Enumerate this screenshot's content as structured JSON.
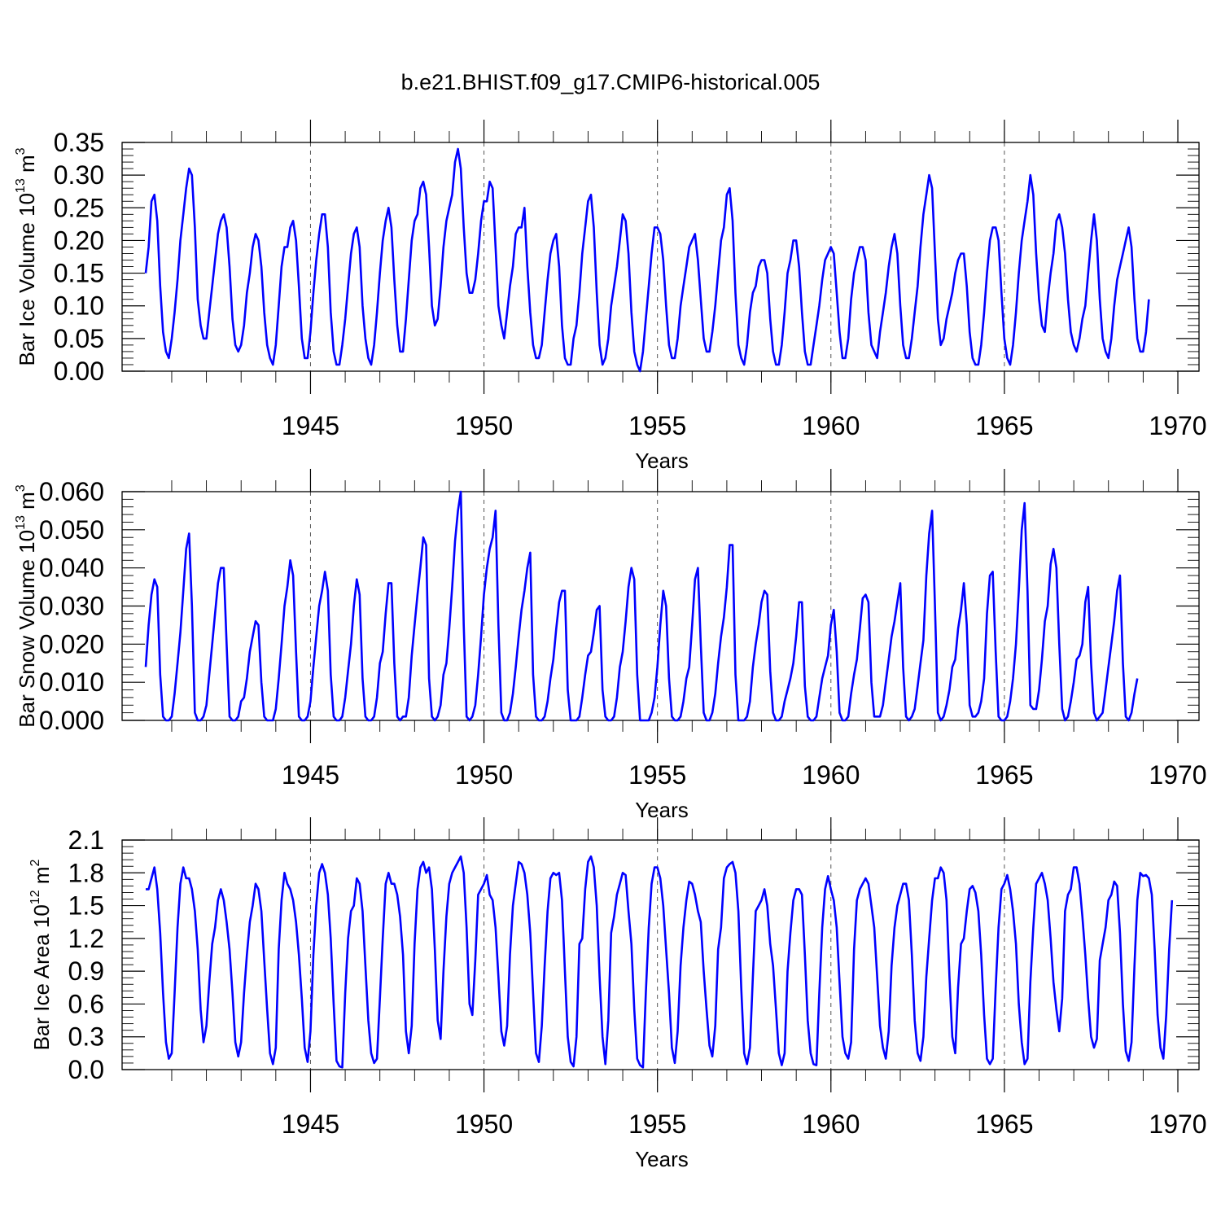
{
  "title": "b.e21.BHIST.f09_g17.CMIP6-historical.005",
  "colors": {
    "series": "#0000ff",
    "frame": "#000000",
    "gridline": "#555555"
  },
  "chart_data": [
    {
      "type": "line",
      "ylabel": {
        "text": "Bar Ice Volume 10",
        "sup": "13",
        "unit": " m",
        "unit_sup": "3"
      },
      "xlabel": "Years",
      "xlim": [
        1940.25,
        1970
      ],
      "ylim": [
        0,
        0.35
      ],
      "xticks": [
        1945,
        1950,
        1955,
        1960,
        1965,
        1970
      ],
      "xtick_labels": [
        "1945",
        "1950",
        "1955",
        "1960",
        "1965",
        "1970"
      ],
      "yticks": [
        0,
        0.05,
        0.1,
        0.15,
        0.2,
        0.25,
        0.3,
        0.35
      ],
      "ytick_labels": [
        "0.00",
        "0.05",
        "0.10",
        "0.15",
        "0.20",
        "0.25",
        "0.30",
        "0.35"
      ],
      "vlines": [
        1945,
        1950,
        1955,
        1960,
        1965
      ],
      "x_start": 1940.25,
      "x_step": 0.08333,
      "values": [
        0.15,
        0.19,
        0.26,
        0.27,
        0.23,
        0.13,
        0.06,
        0.03,
        0.02,
        0.05,
        0.09,
        0.14,
        0.2,
        0.24,
        0.28,
        0.31,
        0.3,
        0.22,
        0.11,
        0.07,
        0.05,
        0.05,
        0.09,
        0.13,
        0.17,
        0.21,
        0.23,
        0.24,
        0.22,
        0.16,
        0.08,
        0.04,
        0.03,
        0.04,
        0.07,
        0.12,
        0.15,
        0.19,
        0.21,
        0.2,
        0.16,
        0.09,
        0.04,
        0.02,
        0.01,
        0.04,
        0.1,
        0.16,
        0.19,
        0.19,
        0.22,
        0.23,
        0.2,
        0.13,
        0.05,
        0.02,
        0.02,
        0.06,
        0.12,
        0.17,
        0.21,
        0.24,
        0.24,
        0.19,
        0.09,
        0.03,
        0.01,
        0.01,
        0.04,
        0.08,
        0.13,
        0.18,
        0.21,
        0.22,
        0.19,
        0.1,
        0.05,
        0.02,
        0.01,
        0.04,
        0.09,
        0.15,
        0.2,
        0.23,
        0.25,
        0.22,
        0.14,
        0.07,
        0.03,
        0.03,
        0.08,
        0.14,
        0.2,
        0.23,
        0.24,
        0.28,
        0.29,
        0.27,
        0.19,
        0.1,
        0.07,
        0.08,
        0.13,
        0.19,
        0.23,
        0.25,
        0.27,
        0.32,
        0.34,
        0.31,
        0.22,
        0.15,
        0.12,
        0.12,
        0.14,
        0.18,
        0.23,
        0.26,
        0.26,
        0.29,
        0.28,
        0.19,
        0.1,
        0.07,
        0.05,
        0.09,
        0.13,
        0.16,
        0.21,
        0.22,
        0.22,
        0.25,
        0.16,
        0.09,
        0.04,
        0.02,
        0.02,
        0.04,
        0.09,
        0.14,
        0.18,
        0.2,
        0.21,
        0.16,
        0.07,
        0.02,
        0.01,
        0.01,
        0.05,
        0.07,
        0.12,
        0.18,
        0.22,
        0.26,
        0.27,
        0.22,
        0.12,
        0.04,
        0.01,
        0.02,
        0.05,
        0.1,
        0.13,
        0.16,
        0.2,
        0.24,
        0.23,
        0.18,
        0.09,
        0.03,
        0.01,
        0.0,
        0.03,
        0.08,
        0.13,
        0.18,
        0.22,
        0.22,
        0.21,
        0.17,
        0.1,
        0.04,
        0.02,
        0.02,
        0.05,
        0.1,
        0.13,
        0.16,
        0.19,
        0.2,
        0.21,
        0.17,
        0.11,
        0.05,
        0.03,
        0.03,
        0.06,
        0.1,
        0.15,
        0.2,
        0.22,
        0.27,
        0.28,
        0.23,
        0.12,
        0.04,
        0.02,
        0.01,
        0.04,
        0.09,
        0.12,
        0.13,
        0.16,
        0.17,
        0.17,
        0.15,
        0.08,
        0.03,
        0.01,
        0.01,
        0.04,
        0.09,
        0.15,
        0.17,
        0.2,
        0.2,
        0.16,
        0.09,
        0.03,
        0.01,
        0.01,
        0.04,
        0.07,
        0.1,
        0.14,
        0.17,
        0.18,
        0.19,
        0.18,
        0.12,
        0.06,
        0.02,
        0.02,
        0.05,
        0.11,
        0.15,
        0.17,
        0.19,
        0.19,
        0.17,
        0.09,
        0.04,
        0.03,
        0.02,
        0.06,
        0.09,
        0.12,
        0.16,
        0.19,
        0.21,
        0.18,
        0.1,
        0.04,
        0.02,
        0.02,
        0.05,
        0.09,
        0.13,
        0.19,
        0.24,
        0.27,
        0.3,
        0.28,
        0.18,
        0.08,
        0.04,
        0.05,
        0.08,
        0.1,
        0.12,
        0.15,
        0.17,
        0.18,
        0.18,
        0.13,
        0.06,
        0.02,
        0.01,
        0.01,
        0.04,
        0.09,
        0.15,
        0.2,
        0.22,
        0.22,
        0.2,
        0.12,
        0.05,
        0.02,
        0.01,
        0.04,
        0.09,
        0.15,
        0.2,
        0.23,
        0.26,
        0.3,
        0.27,
        0.18,
        0.11,
        0.07,
        0.06,
        0.11,
        0.15,
        0.18,
        0.23,
        0.24,
        0.22,
        0.18,
        0.11,
        0.06,
        0.04,
        0.03,
        0.05,
        0.08,
        0.1,
        0.15,
        0.2,
        0.24,
        0.2,
        0.11,
        0.05,
        0.03,
        0.02,
        0.05,
        0.1,
        0.14,
        0.16,
        0.18,
        0.2,
        0.22,
        0.19,
        0.11,
        0.05,
        0.03,
        0.03,
        0.06,
        0.11
      ]
    },
    {
      "type": "line",
      "ylabel": {
        "text": "Bar Snow Volume 10",
        "sup": "13",
        "unit": " m",
        "unit_sup": "3"
      },
      "xlabel": "Years",
      "xlim": [
        1940.25,
        1970
      ],
      "ylim": [
        0,
        0.06
      ],
      "xticks": [
        1945,
        1950,
        1955,
        1960,
        1965,
        1970
      ],
      "xtick_labels": [
        "1945",
        "1950",
        "1955",
        "1960",
        "1965",
        "1970"
      ],
      "yticks": [
        0,
        0.01,
        0.02,
        0.03,
        0.04,
        0.05,
        0.06
      ],
      "ytick_labels": [
        "0.000",
        "0.010",
        "0.020",
        "0.030",
        "0.040",
        "0.050",
        "0.060"
      ],
      "vlines": [
        1945,
        1950,
        1955,
        1960,
        1965
      ],
      "x_start": 1940.25,
      "x_step": 0.08333,
      "values": [
        0.014,
        0.025,
        0.033,
        0.037,
        0.035,
        0.012,
        0.001,
        0.0,
        0.0,
        0.001,
        0.007,
        0.015,
        0.023,
        0.034,
        0.045,
        0.049,
        0.03,
        0.002,
        0.0,
        0.0,
        0.001,
        0.004,
        0.012,
        0.02,
        0.028,
        0.036,
        0.04,
        0.04,
        0.02,
        0.001,
        0.0,
        0.0,
        0.001,
        0.005,
        0.006,
        0.011,
        0.018,
        0.022,
        0.026,
        0.025,
        0.01,
        0.001,
        0.0,
        0.0,
        0.0,
        0.003,
        0.011,
        0.02,
        0.03,
        0.035,
        0.042,
        0.038,
        0.018,
        0.001,
        0.0,
        0.0,
        0.001,
        0.005,
        0.014,
        0.022,
        0.03,
        0.034,
        0.039,
        0.034,
        0.012,
        0.001,
        0.0,
        0.0,
        0.001,
        0.006,
        0.013,
        0.02,
        0.03,
        0.037,
        0.033,
        0.011,
        0.001,
        0.0,
        0.0,
        0.001,
        0.006,
        0.015,
        0.018,
        0.028,
        0.036,
        0.036,
        0.015,
        0.001,
        0.0,
        0.001,
        0.001,
        0.006,
        0.017,
        0.025,
        0.033,
        0.04,
        0.048,
        0.046,
        0.011,
        0.001,
        0.0,
        0.001,
        0.004,
        0.012,
        0.015,
        0.024,
        0.035,
        0.047,
        0.055,
        0.06,
        0.025,
        0.001,
        0.0,
        0.001,
        0.004,
        0.012,
        0.022,
        0.033,
        0.04,
        0.045,
        0.048,
        0.055,
        0.025,
        0.002,
        0.0,
        0.0,
        0.002,
        0.007,
        0.014,
        0.022,
        0.029,
        0.034,
        0.04,
        0.044,
        0.012,
        0.001,
        0.0,
        0.0,
        0.001,
        0.005,
        0.011,
        0.016,
        0.024,
        0.031,
        0.034,
        0.034,
        0.008,
        0.0,
        0.0,
        0.0,
        0.001,
        0.006,
        0.012,
        0.017,
        0.018,
        0.023,
        0.029,
        0.03,
        0.008,
        0.001,
        0.0,
        0.0,
        0.001,
        0.006,
        0.014,
        0.018,
        0.026,
        0.035,
        0.04,
        0.037,
        0.012,
        0.0,
        0.0,
        0.0,
        0.0,
        0.002,
        0.006,
        0.014,
        0.025,
        0.034,
        0.03,
        0.011,
        0.001,
        0.0,
        0.0,
        0.001,
        0.005,
        0.011,
        0.014,
        0.025,
        0.037,
        0.04,
        0.02,
        0.002,
        0.0,
        0.0,
        0.002,
        0.007,
        0.015,
        0.022,
        0.027,
        0.035,
        0.046,
        0.046,
        0.012,
        0.0,
        0.0,
        0.0,
        0.001,
        0.005,
        0.014,
        0.02,
        0.025,
        0.031,
        0.034,
        0.033,
        0.013,
        0.002,
        0.0,
        0.0,
        0.001,
        0.005,
        0.008,
        0.011,
        0.015,
        0.022,
        0.031,
        0.031,
        0.009,
        0.001,
        0.0,
        0.0,
        0.001,
        0.006,
        0.011,
        0.014,
        0.017,
        0.025,
        0.029,
        0.018,
        0.002,
        0.0,
        0.0,
        0.001,
        0.007,
        0.012,
        0.016,
        0.024,
        0.032,
        0.033,
        0.031,
        0.01,
        0.001,
        0.001,
        0.001,
        0.004,
        0.01,
        0.016,
        0.022,
        0.026,
        0.031,
        0.036,
        0.014,
        0.001,
        0.0,
        0.001,
        0.003,
        0.009,
        0.015,
        0.021,
        0.038,
        0.049,
        0.055,
        0.03,
        0.002,
        0.0,
        0.001,
        0.004,
        0.008,
        0.014,
        0.016,
        0.024,
        0.029,
        0.036,
        0.025,
        0.004,
        0.001,
        0.001,
        0.002,
        0.005,
        0.011,
        0.028,
        0.038,
        0.039,
        0.018,
        0.001,
        0.0,
        0.0,
        0.001,
        0.005,
        0.011,
        0.02,
        0.034,
        0.05,
        0.057,
        0.034,
        0.004,
        0.003,
        0.003,
        0.008,
        0.016,
        0.026,
        0.03,
        0.041,
        0.045,
        0.04,
        0.02,
        0.003,
        0.0,
        0.001,
        0.005,
        0.01,
        0.016,
        0.017,
        0.02,
        0.031,
        0.035,
        0.015,
        0.002,
        0.0,
        0.001,
        0.002,
        0.008,
        0.014,
        0.02,
        0.026,
        0.034,
        0.038,
        0.015,
        0.001,
        0.0,
        0.002,
        0.007,
        0.011
      ]
    },
    {
      "type": "line",
      "ylabel": {
        "text": "Bar Ice Area 10",
        "sup": "12",
        "unit": " m",
        "unit_sup": "2"
      },
      "xlabel": "Years",
      "xlim": [
        1940.25,
        1970
      ],
      "ylim": [
        0,
        2.1
      ],
      "xticks": [
        1945,
        1950,
        1955,
        1960,
        1965,
        1970
      ],
      "xtick_labels": [
        "1945",
        "1950",
        "1955",
        "1960",
        "1965",
        "1970"
      ],
      "yticks": [
        0,
        0.3,
        0.6,
        0.9,
        1.2,
        1.5,
        1.8,
        2.1
      ],
      "ytick_labels": [
        "0.0",
        "0.3",
        "0.6",
        "0.9",
        "1.2",
        "1.5",
        "1.8",
        "2.1"
      ],
      "vlines": [
        1945,
        1950,
        1955,
        1960,
        1965
      ],
      "x_start": 1940.25,
      "x_step": 0.08333,
      "values": [
        1.65,
        1.65,
        1.75,
        1.85,
        1.65,
        1.25,
        0.7,
        0.25,
        0.1,
        0.15,
        0.7,
        1.3,
        1.7,
        1.85,
        1.75,
        1.75,
        1.65,
        1.45,
        1.1,
        0.55,
        0.25,
        0.4,
        0.8,
        1.15,
        1.3,
        1.55,
        1.65,
        1.55,
        1.35,
        1.1,
        0.7,
        0.25,
        0.12,
        0.25,
        0.7,
        1.05,
        1.35,
        1.5,
        1.7,
        1.65,
        1.45,
        1.0,
        0.55,
        0.15,
        0.05,
        0.2,
        1.1,
        1.55,
        1.8,
        1.7,
        1.65,
        1.55,
        1.35,
        1.05,
        0.65,
        0.2,
        0.07,
        0.35,
        1.05,
        1.5,
        1.8,
        1.88,
        1.8,
        1.6,
        1.2,
        0.6,
        0.08,
        0.03,
        0.02,
        0.7,
        1.2,
        1.45,
        1.5,
        1.75,
        1.7,
        1.45,
        0.95,
        0.45,
        0.15,
        0.06,
        0.1,
        0.65,
        1.2,
        1.7,
        1.8,
        1.7,
        1.7,
        1.6,
        1.4,
        1.05,
        0.35,
        0.15,
        0.4,
        1.15,
        1.65,
        1.85,
        1.9,
        1.8,
        1.85,
        1.65,
        1.1,
        0.45,
        0.28,
        0.9,
        1.4,
        1.7,
        1.8,
        1.85,
        1.9,
        1.95,
        1.8,
        1.3,
        0.6,
        0.5,
        1.0,
        1.6,
        1.65,
        1.7,
        1.78,
        1.6,
        1.55,
        1.3,
        0.85,
        0.35,
        0.22,
        0.4,
        1.05,
        1.5,
        1.7,
        1.9,
        1.88,
        1.8,
        1.6,
        1.25,
        0.7,
        0.15,
        0.07,
        0.4,
        0.95,
        1.45,
        1.75,
        1.8,
        1.78,
        1.8,
        1.55,
        0.9,
        0.3,
        0.07,
        0.03,
        0.3,
        1.15,
        1.2,
        1.65,
        1.9,
        1.95,
        1.85,
        1.5,
        0.85,
        0.3,
        0.05,
        0.45,
        1.25,
        1.4,
        1.6,
        1.7,
        1.8,
        1.78,
        1.45,
        1.15,
        0.55,
        0.1,
        0.04,
        0.02,
        0.7,
        1.3,
        1.7,
        1.85,
        1.85,
        1.75,
        1.5,
        1.1,
        0.7,
        0.2,
        0.06,
        0.35,
        0.95,
        1.3,
        1.55,
        1.72,
        1.7,
        1.6,
        1.45,
        1.35,
        0.9,
        0.55,
        0.22,
        0.12,
        0.4,
        1.1,
        1.3,
        1.75,
        1.85,
        1.88,
        1.9,
        1.8,
        1.45,
        0.75,
        0.15,
        0.05,
        0.2,
        0.85,
        1.45,
        1.5,
        1.55,
        1.65,
        1.5,
        1.15,
        0.95,
        0.55,
        0.15,
        0.04,
        0.15,
        0.9,
        1.25,
        1.55,
        1.65,
        1.65,
        1.6,
        1.05,
        0.45,
        0.15,
        0.05,
        0.04,
        0.7,
        1.3,
        1.65,
        1.77,
        1.65,
        1.55,
        1.3,
        0.8,
        0.3,
        0.15,
        0.1,
        0.25,
        1.1,
        1.55,
        1.65,
        1.7,
        1.75,
        1.7,
        1.5,
        1.3,
        0.85,
        0.4,
        0.2,
        0.1,
        0.35,
        0.95,
        1.3,
        1.5,
        1.6,
        1.7,
        1.7,
        1.55,
        1.05,
        0.45,
        0.15,
        0.08,
        0.3,
        0.85,
        1.2,
        1.55,
        1.75,
        1.75,
        1.85,
        1.8,
        1.55,
        0.85,
        0.3,
        0.15,
        0.75,
        1.15,
        1.2,
        1.45,
        1.65,
        1.68,
        1.62,
        1.45,
        1.05,
        0.5,
        0.1,
        0.05,
        0.1,
        0.75,
        1.3,
        1.65,
        1.7,
        1.78,
        1.65,
        1.45,
        1.15,
        0.6,
        0.25,
        0.05,
        0.1,
        0.8,
        1.3,
        1.7,
        1.75,
        1.8,
        1.7,
        1.55,
        1.2,
        0.8,
        0.55,
        0.35,
        0.65,
        1.45,
        1.6,
        1.65,
        1.85,
        1.85,
        1.7,
        1.4,
        1.05,
        0.65,
        0.3,
        0.2,
        0.28,
        1.0,
        1.15,
        1.3,
        1.55,
        1.6,
        1.72,
        1.68,
        1.25,
        0.6,
        0.17,
        0.08,
        0.25,
        0.95,
        1.55,
        1.8,
        1.77,
        1.78,
        1.75,
        1.6,
        1.1,
        0.5,
        0.2,
        0.1,
        0.5,
        1.1,
        1.55
      ]
    }
  ]
}
